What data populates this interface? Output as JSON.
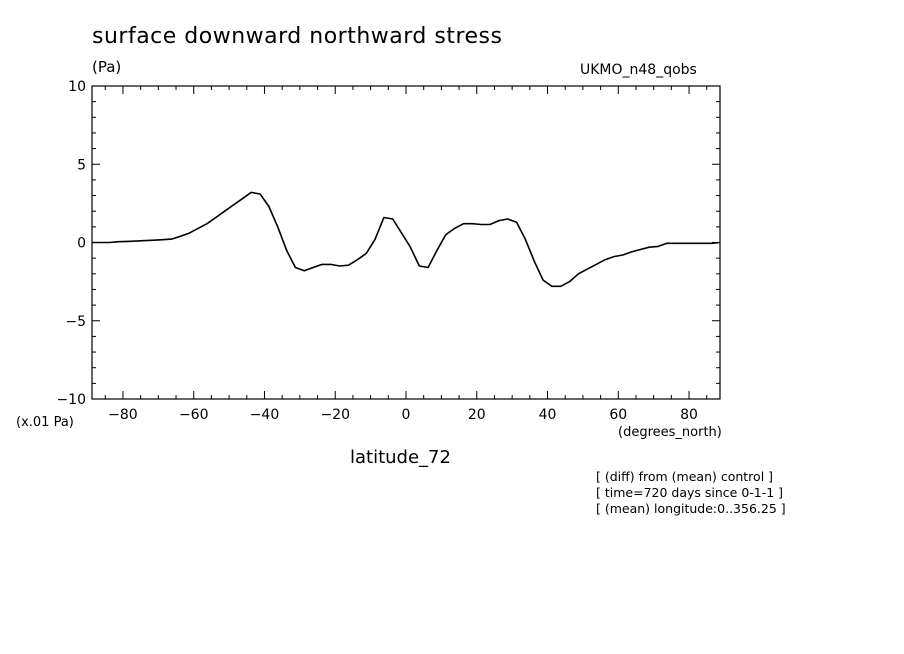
{
  "chart_data": {
    "type": "line",
    "title": "surface downward northward stress",
    "unit_label": "(Pa)",
    "dataset_tag": "UKMO_n48_qobs",
    "scale_note": "(x.01 Pa)",
    "xlabel": "latitude_72",
    "xunit": "(degrees_north)",
    "xlim": [
      -88.75,
      88.75
    ],
    "ylim": [
      -10,
      10
    ],
    "xticks": [
      -80,
      -60,
      -40,
      -20,
      0,
      20,
      40,
      60,
      80
    ],
    "xtick_labels": [
      "−80",
      "−60",
      "−40",
      "−20",
      "0",
      "20",
      "40",
      "60",
      "80"
    ],
    "yticks": [
      -10,
      -5,
      0,
      5,
      10
    ],
    "ytick_labels": [
      "−10",
      "−5",
      "0",
      "5",
      "10"
    ],
    "grid": false,
    "line_color": "#000000",
    "x": [
      -88.75,
      -86.25,
      -83.75,
      -81.25,
      -78.75,
      -76.25,
      -73.75,
      -71.25,
      -68.75,
      -66.25,
      -63.75,
      -61.25,
      -58.75,
      -56.25,
      -53.75,
      -51.25,
      -48.75,
      -46.25,
      -43.75,
      -41.25,
      -38.75,
      -36.25,
      -33.75,
      -31.25,
      -28.75,
      -26.25,
      -23.75,
      -21.25,
      -18.75,
      -16.25,
      -13.75,
      -11.25,
      -8.75,
      -6.25,
      -3.75,
      -1.25,
      1.25,
      3.75,
      6.25,
      8.75,
      11.25,
      13.75,
      16.25,
      18.75,
      21.25,
      23.75,
      26.25,
      28.75,
      31.25,
      33.75,
      36.25,
      38.75,
      41.25,
      43.75,
      46.25,
      48.75,
      51.25,
      53.75,
      56.25,
      58.75,
      61.25,
      63.75,
      66.25,
      68.75,
      71.25,
      73.75,
      76.25,
      78.75,
      81.25,
      83.75,
      86.25,
      88.75
    ],
    "values": [
      0.0,
      0.0,
      0.0,
      0.05,
      0.07,
      0.09,
      0.12,
      0.15,
      0.18,
      0.22,
      0.4,
      0.6,
      0.9,
      1.2,
      1.6,
      2.0,
      2.4,
      2.8,
      3.2,
      3.1,
      2.3,
      1.0,
      -0.5,
      -1.6,
      -1.8,
      -1.6,
      -1.4,
      -1.4,
      -1.5,
      -1.45,
      -1.1,
      -0.7,
      0.2,
      1.6,
      1.5,
      0.6,
      -0.3,
      -1.5,
      -1.6,
      -0.5,
      0.5,
      0.9,
      1.2,
      1.2,
      1.15,
      1.15,
      1.4,
      1.5,
      1.3,
      0.2,
      -1.2,
      -2.4,
      -2.8,
      -2.8,
      -2.5,
      -2.0,
      -1.7,
      -1.4,
      -1.1,
      -0.9,
      -0.8,
      -0.6,
      -0.45,
      -0.3,
      -0.25,
      -0.05,
      -0.05,
      -0.05,
      -0.05,
      -0.05,
      -0.05,
      0.0
    ]
  },
  "notes": [
    "[ (diff) from (mean) control ]",
    "[ time=720 days since 0-1-1 ]",
    "[ (mean) longitude:0..356.25 ]"
  ]
}
